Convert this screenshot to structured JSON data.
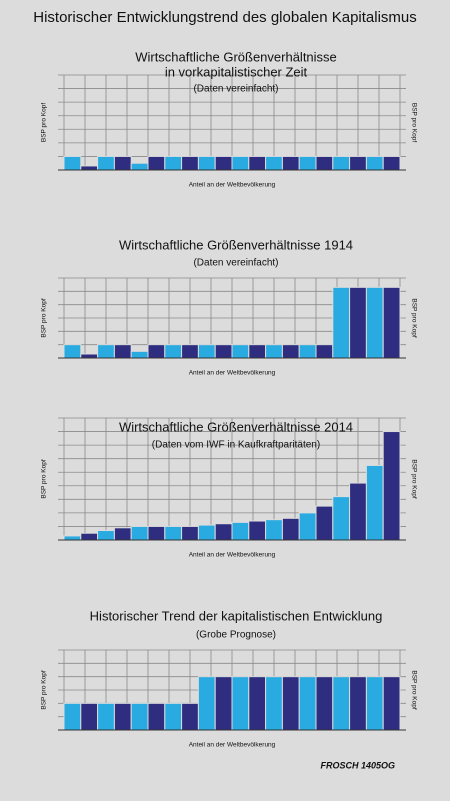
{
  "title": "Historischer Entwicklungstrend des globalen Kapitalismus",
  "signature": "FROSCH 1405OG",
  "chart_data": [
    {
      "type": "bar",
      "title": "Wirtschaftliche Größenverhältnisse",
      "subtitle_1": "in vorkapitalistischer Zeit",
      "subtitle": "(Daten vereinfacht)",
      "ylabel": "BSP pro Kopf",
      "xlabel": "Anteil an der Weltbevölkerung",
      "categories": [
        null,
        null,
        null,
        null,
        null,
        null,
        null,
        null,
        null,
        null,
        null,
        null,
        null,
        null,
        null,
        null,
        null,
        null,
        null,
        null
      ],
      "values": [
        1,
        0.3,
        1,
        1,
        0.5,
        1,
        1,
        1,
        1,
        1,
        1,
        1,
        1,
        1,
        1,
        1,
        1,
        1,
        1,
        1
      ],
      "colors": [
        "#29abe2",
        "#2e2d7f"
      ],
      "ylim": [
        0,
        7
      ]
    },
    {
      "type": "bar",
      "title": "Wirtschaftliche Größenverhältnisse 1914",
      "subtitle": "(Daten vereinfacht)",
      "ylabel": "BSP pro Kopf",
      "xlabel": "Anteil an der Weltbevölkerung",
      "categories": [
        null,
        null,
        null,
        null,
        null,
        null,
        null,
        null,
        null,
        null,
        null,
        null,
        null,
        null,
        null,
        null,
        null,
        null,
        null,
        null
      ],
      "values": [
        1,
        0.3,
        1,
        1,
        0.5,
        1,
        1,
        1,
        1,
        1,
        1,
        1,
        1,
        1,
        1,
        1,
        5.3,
        5.3,
        5.3,
        5.3
      ],
      "colors": [
        "#29abe2",
        "#2e2d7f"
      ],
      "ylim": [
        0,
        6
      ]
    },
    {
      "type": "bar",
      "title": "Wirtschaftliche Größenverhältnisse 2014",
      "subtitle": "(Daten vom IWF in Kaufkraftparitäten)",
      "ylabel": "BSP pro Kopf",
      "xlabel": "Anteil an der Weltbevölkerung",
      "categories": [
        null,
        null,
        null,
        null,
        null,
        null,
        null,
        null,
        null,
        null,
        null,
        null,
        null,
        null,
        null,
        null,
        null,
        null,
        null,
        null
      ],
      "values": [
        0.3,
        0.5,
        0.7,
        0.9,
        1,
        1,
        1,
        1,
        1.1,
        1.2,
        1.3,
        1.4,
        1.5,
        1.6,
        2,
        2.5,
        3.2,
        4.2,
        5.5,
        8
      ],
      "colors": [
        "#29abe2",
        "#2e2d7f"
      ],
      "ylim": [
        0,
        9
      ]
    },
    {
      "type": "bar",
      "title": "Historischer Trend der kapitalistischen Entwicklung",
      "subtitle": "(Grobe Prognose)",
      "ylabel": "BSP pro Kopf",
      "xlabel": "Anteil an der Weltbevölkerung",
      "categories": [
        null,
        null,
        null,
        null,
        null,
        null,
        null,
        null,
        null,
        null,
        null,
        null,
        null,
        null,
        null,
        null,
        null,
        null,
        null,
        null
      ],
      "values": [
        2,
        2,
        2,
        2,
        2,
        2,
        2,
        2,
        4,
        4,
        4,
        4,
        4,
        4,
        4,
        4,
        4,
        4,
        4,
        4
      ],
      "colors": [
        "#29abe2",
        "#2e2d7f"
      ],
      "ylim": [
        0,
        6
      ]
    }
  ]
}
